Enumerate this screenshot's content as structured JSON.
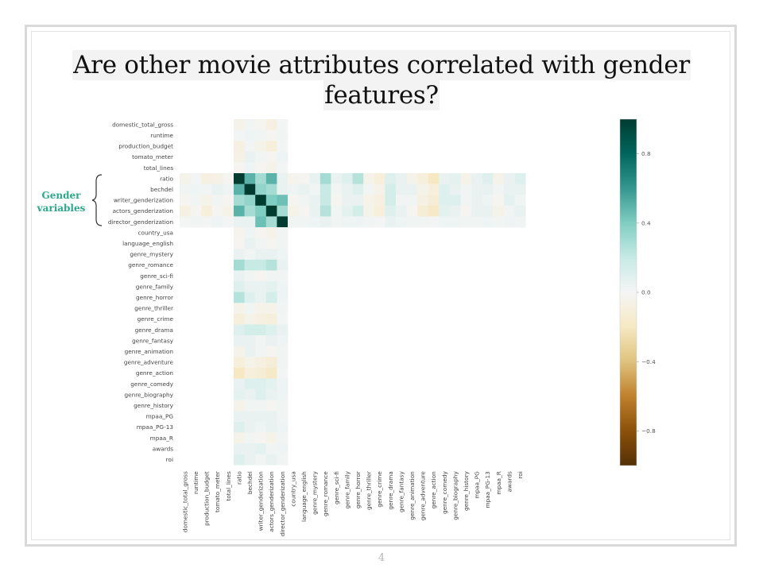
{
  "slide": {
    "title_lines": [
      "Are other movie attributes correlated with gender",
      "features?"
    ],
    "page_number": "4"
  },
  "annotation": {
    "lines": [
      "Gender",
      "variables"
    ],
    "color": "#2aa88a"
  },
  "chart_data": {
    "type": "heatmap",
    "title": "",
    "row_labels": [
      "domestic_total_gross",
      "runtime",
      "production_budget",
      "tomato_meter",
      "total_lines",
      "ratio",
      "bechdel",
      "writer_genderization",
      "actors_genderization",
      "director_genderization",
      "country_usa",
      "language_english",
      "genre_mystery",
      "genre_romance",
      "genre_sci-fi",
      "genre_family",
      "genre_horror",
      "genre_thriller",
      "genre_crime",
      "genre_drama",
      "genre_fantasy",
      "genre_animation",
      "genre_adventure",
      "genre_action",
      "genre_comedy",
      "genre_biography",
      "genre_history",
      "mpaa_PG",
      "mpaa_PG-13",
      "mpaa_R",
      "awards",
      "roi"
    ],
    "col_labels": [
      "domestic_total_gross",
      "runtime",
      "production_budget",
      "tomato_meter",
      "total_lines",
      "ratio",
      "bechdel",
      "writer_genderization",
      "actors_genderization",
      "director_genderization",
      "country_usa",
      "language_english",
      "genre_mystery",
      "genre_romance",
      "genre_sci-fi",
      "genre_family",
      "genre_horror",
      "genre_thriller",
      "genre_crime",
      "genre_drama",
      "genre_fantasy",
      "genre_animation",
      "genre_adventure",
      "genre_action",
      "genre_comedy",
      "genre_biography",
      "genre_history",
      "mpaa_PG",
      "mpaa_PG-13",
      "mpaa_R",
      "awards",
      "roi"
    ],
    "gender_rows": [
      5,
      6,
      7,
      8,
      9
    ],
    "gender_block": [
      [
        -0.05,
        0.01,
        -0.08,
        -0.06,
        -0.02,
        1.0,
        0.5,
        0.3,
        0.5,
        0.05,
        -0.03,
        -0.02,
        0.05,
        0.3,
        0.05,
        0.1,
        0.25,
        -0.05,
        -0.1,
        0.1,
        0.05,
        -0.05,
        -0.1,
        -0.2,
        0.05,
        0.08,
        -0.05,
        0.05,
        0.1,
        -0.05,
        0.05,
        0.1
      ],
      [
        0.02,
        0.03,
        0.02,
        0.05,
        0.03,
        0.5,
        1.0,
        0.35,
        0.3,
        0.05,
        0.03,
        0.05,
        0.02,
        0.2,
        0.02,
        0.05,
        0.1,
        0.02,
        -0.05,
        0.15,
        0.05,
        0.05,
        -0.05,
        -0.1,
        0.1,
        0.05,
        0.02,
        0.05,
        0.05,
        0.02,
        0.05,
        0.05
      ],
      [
        -0.02,
        0.02,
        -0.05,
        0.02,
        -0.02,
        0.3,
        0.35,
        1.0,
        0.4,
        0.45,
        -0.02,
        0.02,
        0.05,
        0.2,
        -0.02,
        0.05,
        0.05,
        -0.05,
        -0.08,
        0.15,
        0.02,
        0.02,
        -0.08,
        -0.12,
        0.1,
        0.1,
        0.02,
        0.05,
        0.03,
        -0.02,
        0.08,
        0.02
      ],
      [
        -0.08,
        -0.02,
        -0.1,
        -0.02,
        -0.05,
        0.5,
        0.3,
        0.4,
        1.0,
        0.3,
        -0.05,
        -0.02,
        0.05,
        0.25,
        0.02,
        0.08,
        0.15,
        -0.05,
        -0.1,
        0.1,
        0.05,
        -0.02,
        -0.12,
        -0.18,
        0.08,
        0.05,
        -0.02,
        0.05,
        0.05,
        -0.05,
        0.02,
        0.05
      ],
      [
        0.01,
        0.02,
        0.01,
        0.03,
        0.01,
        0.05,
        0.05,
        0.45,
        0.3,
        1.0,
        0.02,
        0.02,
        0.03,
        0.05,
        0.02,
        0.03,
        0.03,
        0.02,
        0.01,
        0.05,
        0.03,
        0.02,
        0.02,
        0.01,
        0.03,
        0.03,
        0.02,
        0.02,
        0.03,
        0.02,
        0.03,
        0.02
      ]
    ],
    "colorbar": {
      "range": [
        -1,
        1
      ],
      "ticks": [
        0.8,
        0.4,
        0.0,
        -0.4,
        -0.8
      ],
      "tick_labels": [
        "0.8",
        "0.4",
        "0.0",
        "−0.4",
        "−0.8"
      ],
      "colors": [
        "#543005",
        "#8c510a",
        "#bf812d",
        "#dfc27d",
        "#f6e8c3",
        "#f5f5f5",
        "#c7eae5",
        "#80cdc1",
        "#35978f",
        "#01665e",
        "#003c30"
      ]
    }
  }
}
